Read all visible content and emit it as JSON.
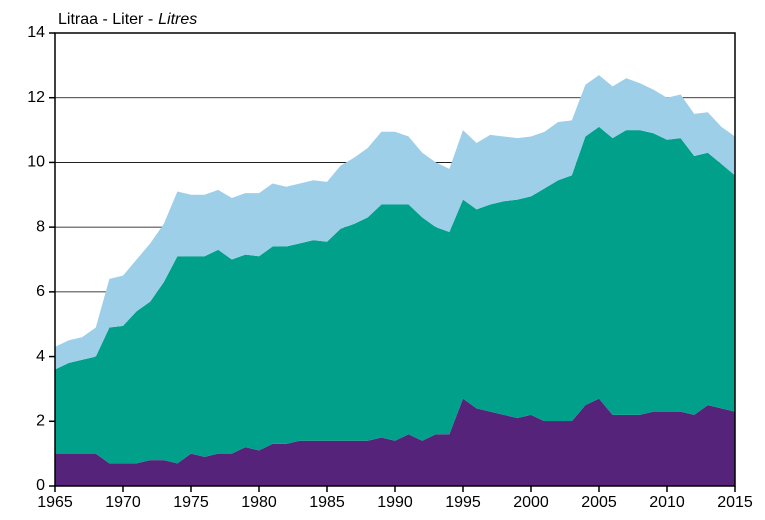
{
  "chart_data": {
    "type": "stacked_area",
    "ylabel": "Litraa - Liter -",
    "ylabel_italic": "Litres",
    "x": [
      1965,
      1966,
      1967,
      1968,
      1969,
      1970,
      1971,
      1972,
      1973,
      1974,
      1975,
      1976,
      1977,
      1978,
      1979,
      1980,
      1981,
      1982,
      1983,
      1984,
      1985,
      1986,
      1987,
      1988,
      1989,
      1990,
      1991,
      1992,
      1993,
      1994,
      1995,
      1996,
      1997,
      1998,
      1999,
      2000,
      2001,
      2002,
      2003,
      2004,
      2005,
      2006,
      2007,
      2008,
      2009,
      2010,
      2011,
      2012,
      2013,
      2014,
      2015
    ],
    "series": [
      {
        "color": "#55247a",
        "values": [
          1.0,
          1.0,
          1.0,
          1.0,
          0.7,
          0.7,
          0.7,
          0.8,
          0.8,
          0.7,
          1.0,
          0.9,
          1.0,
          1.0,
          1.2,
          1.1,
          1.3,
          1.3,
          1.4,
          1.4,
          1.4,
          1.4,
          1.4,
          1.4,
          1.5,
          1.4,
          1.6,
          1.4,
          1.6,
          1.6,
          2.7,
          2.4,
          2.3,
          2.2,
          2.1,
          2.2,
          2.0,
          2.0,
          2.0,
          2.5,
          2.7,
          2.2,
          2.2,
          2.2,
          2.3,
          2.3,
          2.3,
          2.2,
          2.5,
          2.4,
          2.3
        ]
      },
      {
        "color": "#00a08a",
        "values": [
          2.6,
          2.8,
          2.9,
          3.0,
          4.2,
          4.25,
          4.7,
          4.9,
          5.5,
          6.4,
          6.1,
          6.2,
          6.3,
          6.0,
          5.95,
          6.0,
          6.1,
          6.1,
          6.1,
          6.2,
          6.15,
          6.55,
          6.7,
          6.9,
          7.2,
          7.3,
          7.1,
          6.9,
          6.4,
          6.25,
          6.15,
          6.15,
          6.4,
          6.6,
          6.75,
          6.75,
          7.2,
          7.45,
          7.6,
          8.3,
          8.4,
          8.55,
          8.8,
          8.8,
          8.6,
          8.4,
          8.45,
          8.0,
          7.8,
          7.55,
          7.3
        ]
      },
      {
        "color": "#9dcfe8",
        "values": [
          0.7,
          0.7,
          0.7,
          0.9,
          1.5,
          1.55,
          1.6,
          1.8,
          1.8,
          2.0,
          1.9,
          1.9,
          1.85,
          1.9,
          1.9,
          1.95,
          1.95,
          1.85,
          1.85,
          1.85,
          1.85,
          1.95,
          2.05,
          2.15,
          2.25,
          2.25,
          2.1,
          2.0,
          2.0,
          1.95,
          2.15,
          2.05,
          2.15,
          2.0,
          1.9,
          1.85,
          1.75,
          1.8,
          1.7,
          1.6,
          1.6,
          1.6,
          1.6,
          1.45,
          1.35,
          1.3,
          1.35,
          1.3,
          1.25,
          1.15,
          1.2
        ]
      }
    ],
    "xlim": [
      1965,
      2015
    ],
    "xticks": [
      1965,
      1970,
      1975,
      1980,
      1985,
      1990,
      1995,
      2000,
      2005,
      2010,
      2015
    ],
    "ylim": [
      0,
      14
    ],
    "yticks": [
      0,
      2,
      4,
      6,
      8,
      10,
      12,
      14
    ],
    "grid": true
  }
}
